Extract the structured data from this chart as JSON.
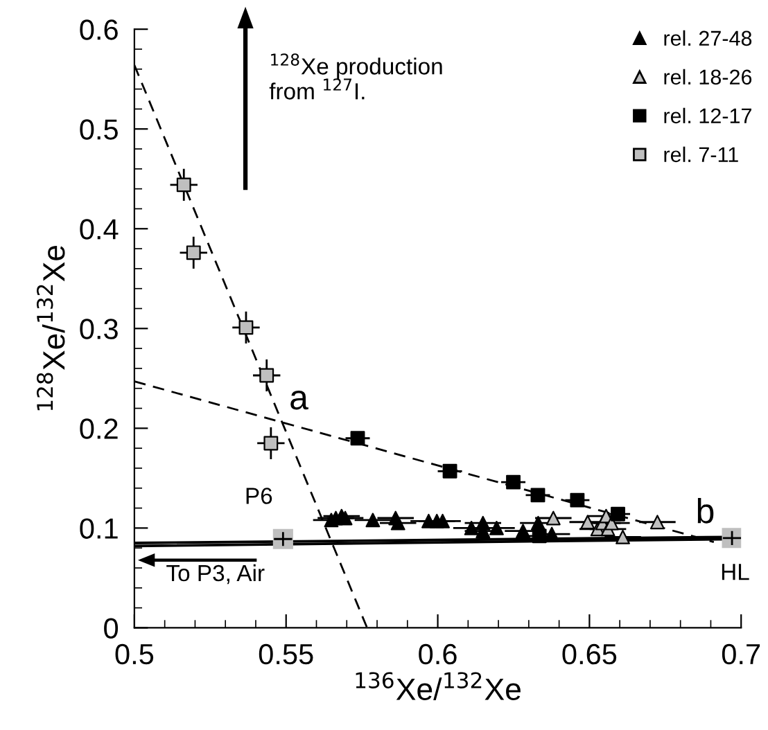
{
  "chart_data": {
    "type": "scatter",
    "xlabel": "$^{136}$Xe/$^{132}$Xe",
    "ylabel": "$^{128}$Xe/$^{132}$Xe",
    "xlim": [
      0.5,
      0.7
    ],
    "xticks": [
      0.5,
      0.55,
      0.6,
      0.65,
      0.7
    ],
    "ylim": [
      0,
      0.6
    ],
    "yticks": [
      0,
      0.1,
      0.2,
      0.3,
      0.4,
      0.5,
      0.6
    ],
    "grid": false,
    "legend": "top right",
    "series": [
      {
        "type": "line",
        "color": "#000000",
        "marker": "none",
        "line_style": "dashed",
        "x": [
          0.5,
          0.5767
        ],
        "values": [
          0.564,
          0
        ]
      },
      {
        "type": "line",
        "color": "#000000",
        "marker": "none",
        "line_style": "dashed",
        "x": [
          0.5,
          0.691
        ],
        "values": [
          0.247,
          0.086
        ]
      },
      {
        "type": "line",
        "color": "#000000",
        "marker": "none",
        "line_style": "solid",
        "x": [
          0.5,
          0.697
        ],
        "values": [
          0.082,
          0.089
        ]
      },
      {
        "type": "line",
        "color": "#000000",
        "marker": "none",
        "line_style": "solid",
        "x": [
          0.5,
          0.697
        ],
        "values": [
          0.085,
          0.091
        ]
      },
      {
        "name": "rel. 27-48",
        "color": "#000000",
        "marker": "triangle",
        "x": [
          0.5649,
          0.5664,
          0.5683,
          0.5695,
          0.5786,
          0.5861,
          0.5869,
          0.597,
          0.5997,
          0.6016,
          0.6111,
          0.6149,
          0.6149,
          0.6194,
          0.6281,
          0.6331,
          0.6376
        ],
        "values": [
          0.108,
          0.11,
          0.112,
          0.11,
          0.108,
          0.11,
          0.105,
          0.107,
          0.107,
          0.107,
          0.1,
          0.105,
          0.097,
          0.1,
          0.097,
          0.105,
          0.094
        ],
        "xerrors": [
          0.006,
          0.006,
          0.006,
          0.006,
          0.006,
          0.006,
          0.006,
          0.006,
          0.006,
          0.006,
          0.006,
          0.006,
          0.006,
          0.006,
          0.006,
          0.006,
          0.006
        ]
      },
      {
        "name": "rel. 18-26",
        "color": "#bfbfbf",
        "marker": "triangle",
        "x": [
          0.6381,
          0.6494,
          0.6527,
          0.6543,
          0.6555,
          0.6561,
          0.6573,
          0.661,
          0.6724
        ],
        "values": [
          0.11,
          0.106,
          0.099,
          0.105,
          0.112,
          0.099,
          0.105,
          0.091,
          0.106
        ],
        "xerrors": [
          0.006,
          0.006,
          0.006,
          0.006,
          0.006,
          0.006,
          0.006,
          0.006,
          0.006
        ]
      },
      {
        "name": "rel. 12-17",
        "color": "#000000",
        "marker": "square",
        "x": [
          0.5736,
          0.604,
          0.6249,
          0.633,
          0.646,
          0.6594,
          0.6335
        ],
        "values": [
          0.19,
          0.157,
          0.146,
          0.133,
          0.128,
          0.114,
          0.092
        ],
        "xerrors": [
          0.004,
          0.004,
          0.004,
          0.004,
          0.004,
          0.004,
          0.004
        ],
        "errors": [
          0.005,
          0.005,
          0.005,
          0.005,
          0.005,
          0.005,
          0.005
        ]
      },
      {
        "name": "rel. 7-11",
        "color": "#bfbfbf",
        "marker": "square",
        "x": [
          0.5163,
          0.5195,
          0.5368,
          0.5436,
          0.545
        ],
        "values": [
          0.444,
          0.376,
          0.301,
          0.253,
          0.185
        ],
        "xerrors": [
          0.0045,
          0.0045,
          0.0045,
          0.0045,
          0.0045
        ],
        "errors": [
          0.016,
          0.016,
          0.016,
          0.016,
          0.016
        ]
      },
      {
        "color": "#bfbfbf",
        "marker": "square",
        "x": [
          0.549,
          0.697
        ],
        "values": [
          0.089,
          0.09
        ],
        "xerrors": [
          0.003,
          0.003
        ],
        "errors": [
          0.007,
          0.007
        ]
      }
    ],
    "annotations": [
      "a",
      "b",
      "P6",
      "HL",
      "To P3, Air",
      "$^{128}$Xe production\nfrom $^{127}$I."
    ]
  }
}
